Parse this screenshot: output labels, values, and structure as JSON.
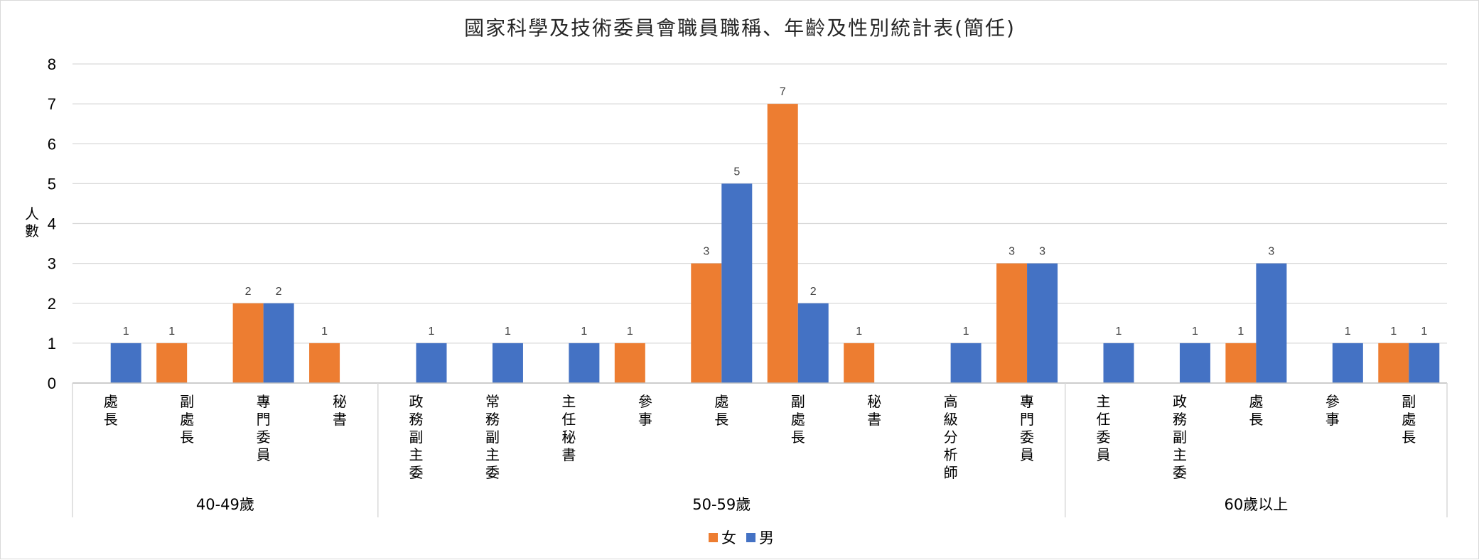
{
  "chart_data": {
    "type": "bar",
    "title": "國家科學及技術委員會職員職稱、年齡及性別統計表(簡任)",
    "ylabel": "人數",
    "ylim": [
      0,
      8
    ],
    "yticks": [
      0,
      1,
      2,
      3,
      4,
      5,
      6,
      7,
      8
    ],
    "grid": true,
    "legend_placement": "bottom",
    "groups": [
      {
        "name": "40-49歲",
        "categories": [
          "處長",
          "副處長",
          "專門委員",
          "秘書"
        ]
      },
      {
        "name": "50-59歲",
        "categories": [
          "政務副主委",
          "常務副主委",
          "主任秘書",
          "參事",
          "處長",
          "副處長",
          "秘書",
          "高級分析師",
          "專門委員"
        ]
      },
      {
        "name": "60歲以上",
        "categories": [
          "主任委員",
          "政務副主委",
          "處長",
          "參事",
          "副處長"
        ]
      }
    ],
    "series": [
      {
        "name": "女",
        "color": "#ED7D31",
        "values": [
          null,
          1,
          2,
          1,
          null,
          null,
          null,
          1,
          3,
          7,
          1,
          null,
          3,
          null,
          null,
          1,
          null,
          1
        ]
      },
      {
        "name": "男",
        "color": "#4472C4",
        "values": [
          1,
          null,
          2,
          null,
          1,
          1,
          1,
          null,
          5,
          2,
          null,
          1,
          3,
          1,
          1,
          3,
          1,
          1
        ]
      }
    ]
  }
}
